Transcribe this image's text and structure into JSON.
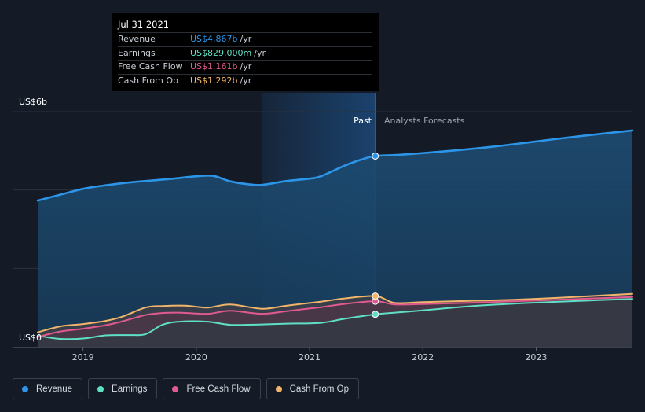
{
  "tooltip": {
    "date": "Jul 31 2021",
    "rows": [
      {
        "label": "Revenue",
        "value": "US$4.867b",
        "unit": "/yr",
        "color": "#2c95e8"
      },
      {
        "label": "Earnings",
        "value": "US$829.000m",
        "unit": "/yr",
        "color": "#5fe0c6"
      },
      {
        "label": "Free Cash Flow",
        "value": "US$1.161b",
        "unit": "/yr",
        "color": "#e05a8f"
      },
      {
        "label": "Cash From Op",
        "value": "US$1.292b",
        "unit": "/yr",
        "color": "#f0b46b"
      }
    ]
  },
  "legend": [
    {
      "label": "Revenue",
      "color": "#2c95e8"
    },
    {
      "label": "Earnings",
      "color": "#5fe0c6"
    },
    {
      "label": "Free Cash Flow",
      "color": "#e05a8f"
    },
    {
      "label": "Cash From Op",
      "color": "#f0b46b"
    }
  ],
  "chart_data": {
    "type": "line",
    "title": "",
    "xlabel": "",
    "ylabel": "",
    "y_top_label": "US$6b",
    "y_bottom_label": "US$0",
    "ylim": [
      0,
      6
    ],
    "xlim": [
      2018.6,
      2023.85
    ],
    "x_ticks": [
      2019,
      2020,
      2021,
      2022,
      2023
    ],
    "x_tick_labels": [
      "2019",
      "2020",
      "2021",
      "2022",
      "2023"
    ],
    "divider_x": 2021.58,
    "highlight_start_x": 2020.58,
    "past_label": "Past",
    "forecast_label": "Analysts Forecasts",
    "series": [
      {
        "name": "Revenue",
        "color": "#2c95e8",
        "marker_x": 2021.58,
        "marker_y": 4.867,
        "points": [
          [
            2018.6,
            3.73
          ],
          [
            2018.8,
            3.88
          ],
          [
            2019.0,
            4.03
          ],
          [
            2019.2,
            4.12
          ],
          [
            2019.4,
            4.19
          ],
          [
            2019.6,
            4.24
          ],
          [
            2019.8,
            4.29
          ],
          [
            2020.0,
            4.35
          ],
          [
            2020.15,
            4.36
          ],
          [
            2020.3,
            4.22
          ],
          [
            2020.45,
            4.15
          ],
          [
            2020.58,
            4.13
          ],
          [
            2020.8,
            4.23
          ],
          [
            2021.0,
            4.29
          ],
          [
            2021.1,
            4.35
          ],
          [
            2021.3,
            4.61
          ],
          [
            2021.45,
            4.77
          ],
          [
            2021.58,
            4.867
          ],
          [
            2021.8,
            4.9
          ],
          [
            2022.2,
            4.99
          ],
          [
            2022.6,
            5.1
          ],
          [
            2023.0,
            5.24
          ],
          [
            2023.4,
            5.38
          ],
          [
            2023.85,
            5.52
          ]
        ]
      },
      {
        "name": "Earnings",
        "color": "#5fe0c6",
        "marker_x": 2021.58,
        "marker_y": 0.829,
        "points": [
          [
            2018.6,
            0.28
          ],
          [
            2018.8,
            0.2
          ],
          [
            2019.0,
            0.21
          ],
          [
            2019.2,
            0.29
          ],
          [
            2019.4,
            0.3
          ],
          [
            2019.55,
            0.32
          ],
          [
            2019.7,
            0.56
          ],
          [
            2019.85,
            0.64
          ],
          [
            2020.1,
            0.64
          ],
          [
            2020.3,
            0.56
          ],
          [
            2020.58,
            0.57
          ],
          [
            2020.8,
            0.59
          ],
          [
            2021.1,
            0.61
          ],
          [
            2021.3,
            0.71
          ],
          [
            2021.58,
            0.829
          ],
          [
            2021.8,
            0.88
          ],
          [
            2022.0,
            0.93
          ],
          [
            2022.4,
            1.03
          ],
          [
            2022.8,
            1.1
          ],
          [
            2023.2,
            1.15
          ],
          [
            2023.85,
            1.22
          ]
        ]
      },
      {
        "name": "Free Cash Flow",
        "color": "#e05a8f",
        "marker_x": 2021.58,
        "marker_y": 1.161,
        "points": [
          [
            2018.6,
            0.25
          ],
          [
            2018.8,
            0.39
          ],
          [
            2019.0,
            0.46
          ],
          [
            2019.2,
            0.55
          ],
          [
            2019.35,
            0.65
          ],
          [
            2019.55,
            0.81
          ],
          [
            2019.7,
            0.86
          ],
          [
            2019.85,
            0.87
          ],
          [
            2020.1,
            0.84
          ],
          [
            2020.3,
            0.92
          ],
          [
            2020.58,
            0.84
          ],
          [
            2020.8,
            0.91
          ],
          [
            2021.1,
            1.01
          ],
          [
            2021.3,
            1.09
          ],
          [
            2021.58,
            1.161
          ],
          [
            2021.75,
            1.08
          ],
          [
            2022.0,
            1.09
          ],
          [
            2022.4,
            1.12
          ],
          [
            2022.8,
            1.16
          ],
          [
            2023.2,
            1.2
          ],
          [
            2023.85,
            1.27
          ]
        ]
      },
      {
        "name": "Cash From Op",
        "color": "#f0b46b",
        "marker_x": 2021.58,
        "marker_y": 1.292,
        "points": [
          [
            2018.6,
            0.37
          ],
          [
            2018.8,
            0.52
          ],
          [
            2019.0,
            0.58
          ],
          [
            2019.2,
            0.66
          ],
          [
            2019.35,
            0.77
          ],
          [
            2019.55,
            1.0
          ],
          [
            2019.7,
            1.04
          ],
          [
            2019.9,
            1.05
          ],
          [
            2020.1,
            1.0
          ],
          [
            2020.3,
            1.08
          ],
          [
            2020.58,
            0.97
          ],
          [
            2020.8,
            1.05
          ],
          [
            2021.1,
            1.15
          ],
          [
            2021.3,
            1.23
          ],
          [
            2021.58,
            1.292
          ],
          [
            2021.75,
            1.12
          ],
          [
            2022.0,
            1.14
          ],
          [
            2022.4,
            1.17
          ],
          [
            2022.8,
            1.2
          ],
          [
            2023.2,
            1.25
          ],
          [
            2023.85,
            1.35
          ]
        ]
      }
    ]
  }
}
